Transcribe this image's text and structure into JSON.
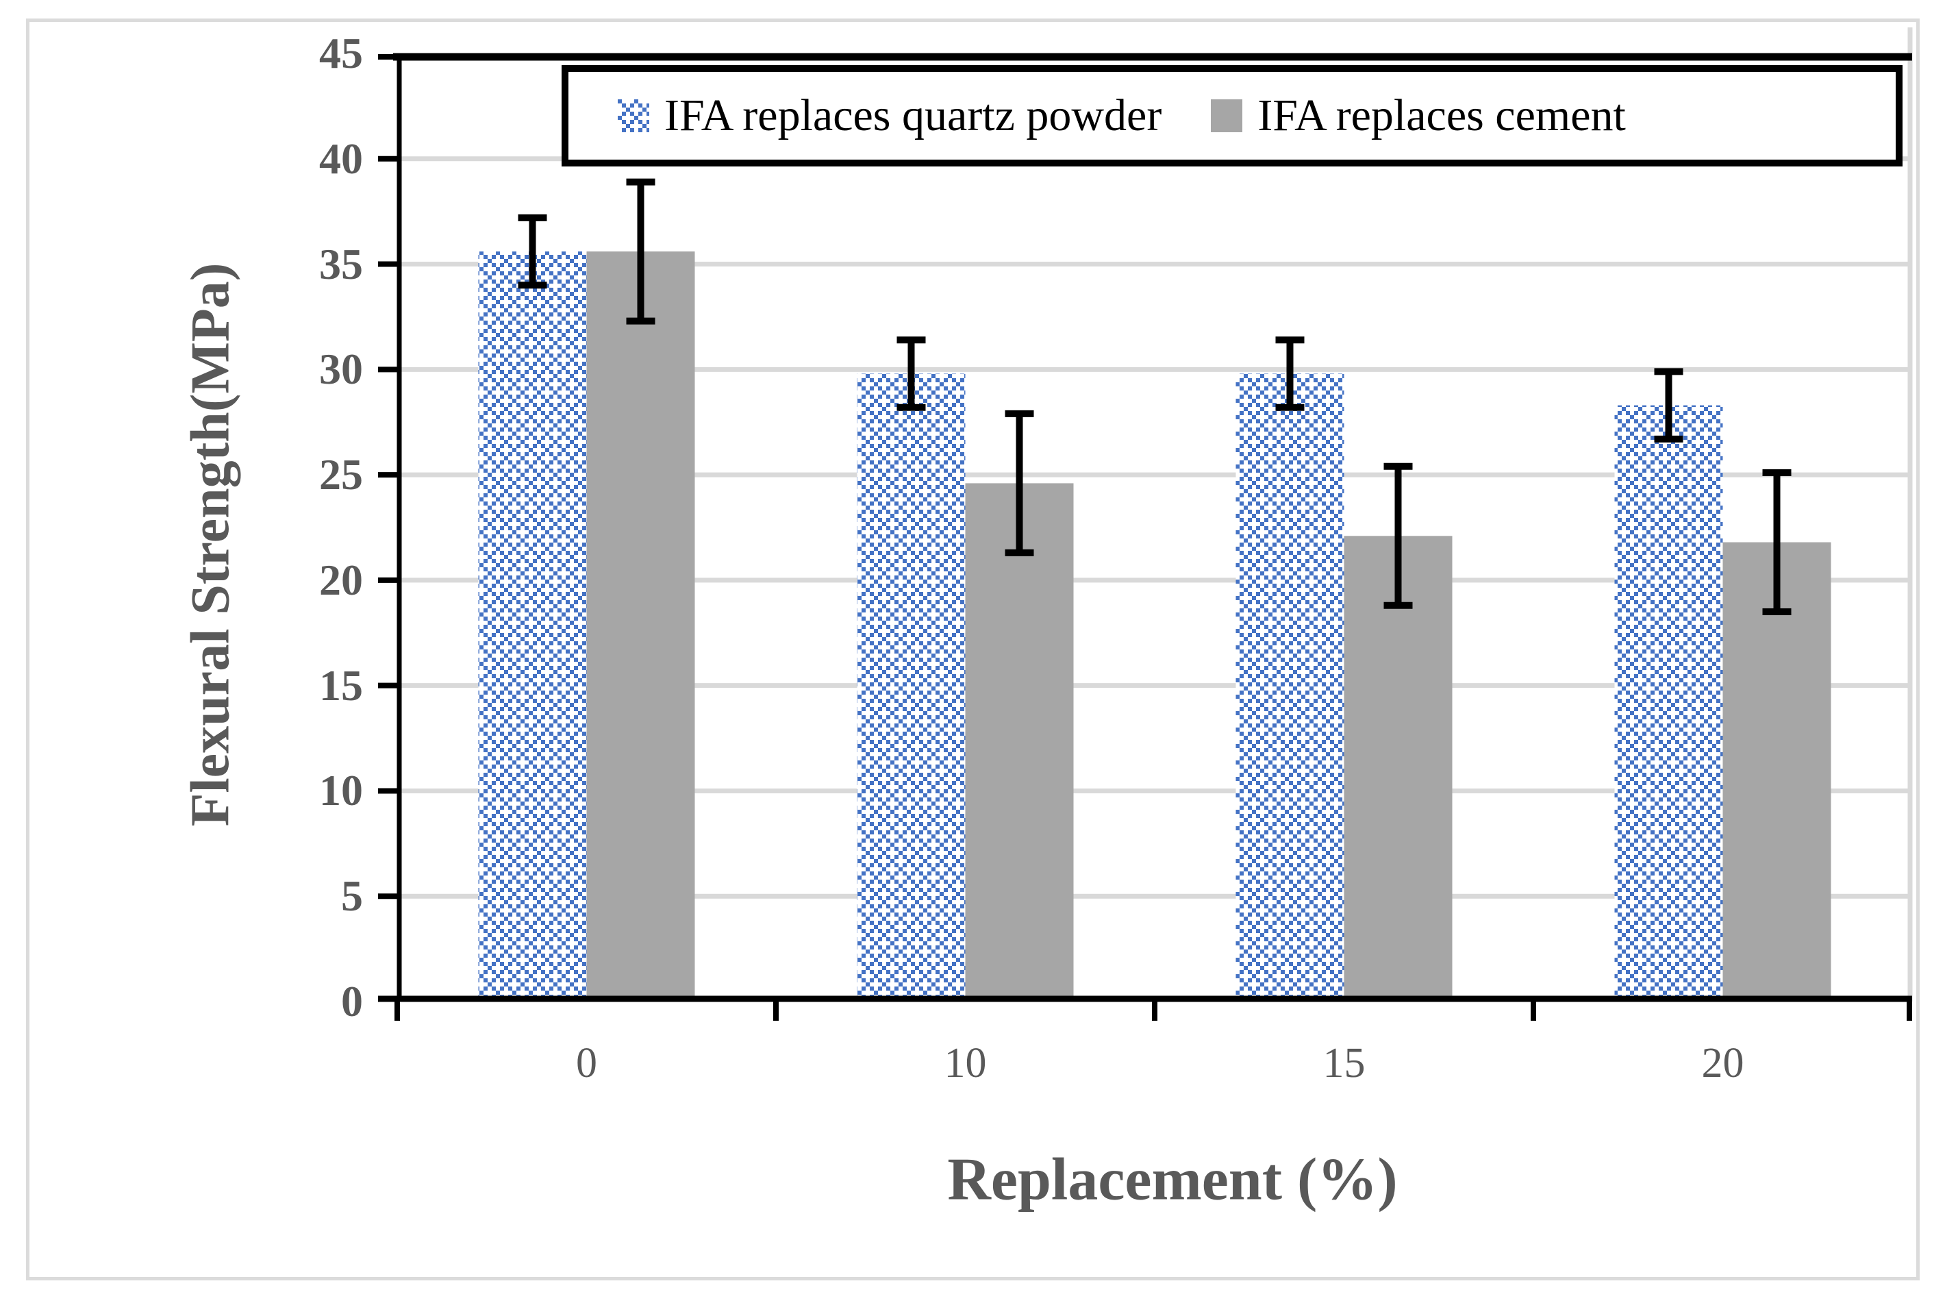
{
  "chart_data": {
    "type": "bar",
    "categories": [
      "0",
      "10",
      "15",
      "20"
    ],
    "series": [
      {
        "name": "IFA replaces quartz powder",
        "values": [
          35.6,
          29.8,
          29.8,
          28.3
        ],
        "errors": [
          1.6,
          1.6,
          1.6,
          1.6
        ],
        "color": "#4472C4",
        "fill_style": "dotted-diamond-pattern"
      },
      {
        "name": "IFA replaces cement",
        "values": [
          35.6,
          24.6,
          22.1,
          21.8
        ],
        "errors": [
          3.3,
          3.3,
          3.3,
          3.3
        ],
        "color": "#A6A6A6",
        "fill_style": "solid"
      }
    ],
    "xlabel": "Replacement (%)",
    "ylabel": "Flexural Strength(MPa)",
    "ylim": [
      0,
      45
    ],
    "ytick_step": 5,
    "grid": "horizontal-major",
    "gridline_color": "#D9D9D9",
    "axis_text_color": "#595959",
    "axis_line_color": "#000000",
    "error_bar_color": "#000000",
    "legend_position": "top-inside",
    "legend_border_color": "#000000"
  }
}
